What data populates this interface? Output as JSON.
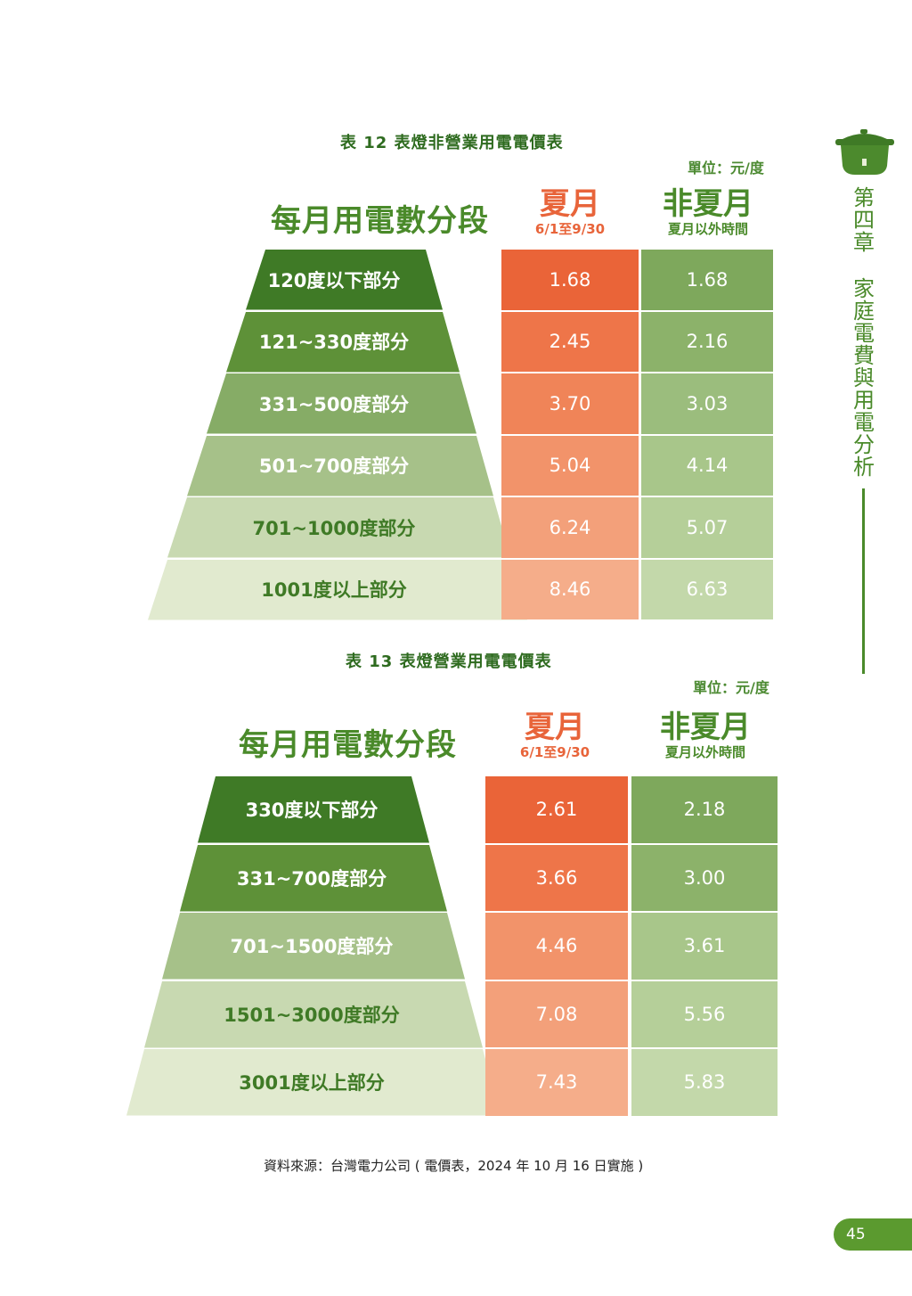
{
  "table12": {
    "title": "表 12 表燈非營業用電電價表",
    "unit": "單位：元/度",
    "tier_header": "每月用電數分段",
    "summer_label": "夏月",
    "summer_range": "6/1至9/30",
    "nonsummer_label": "非夏月",
    "nonsummer_range": "夏月以外時間",
    "rows": [
      {
        "tier": "120度以下部分",
        "summer": "1.68",
        "nonsummer": "1.68"
      },
      {
        "tier": "121~330度部分",
        "summer": "2.45",
        "nonsummer": "2.16"
      },
      {
        "tier": "331~500度部分",
        "summer": "3.70",
        "nonsummer": "3.03"
      },
      {
        "tier": "501~700度部分",
        "summer": "5.04",
        "nonsummer": "4.14"
      },
      {
        "tier": "701~1000度部分",
        "summer": "6.24",
        "nonsummer": "5.07"
      },
      {
        "tier": "1001度以上部分",
        "summer": "8.46",
        "nonsummer": "6.63"
      }
    ]
  },
  "table13": {
    "title": "表 13 表燈營業用電電價表",
    "unit": "單位：元/度",
    "tier_header": "每月用電數分段",
    "summer_label": "夏月",
    "summer_range": "6/1至9/30",
    "nonsummer_label": "非夏月",
    "nonsummer_range": "夏月以外時間",
    "rows": [
      {
        "tier": "330度以下部分",
        "summer": "2.61",
        "nonsummer": "2.18"
      },
      {
        "tier": "331~700度部分",
        "summer": "3.66",
        "nonsummer": "3.00"
      },
      {
        "tier": "701~1500度部分",
        "summer": "4.46",
        "nonsummer": "3.61"
      },
      {
        "tier": "1501~3000度部分",
        "summer": "7.08",
        "nonsummer": "5.56"
      },
      {
        "tier": "3001度以上部分",
        "summer": "7.43",
        "nonsummer": "5.83"
      }
    ]
  },
  "sidebar": {
    "chapter": "第四章",
    "chapter_title": "家庭電費與用電分析",
    "icon": "rice-cooker-icon"
  },
  "footer": {
    "source": "資料來源：台灣電力公司 ( 電價表，2024 年 10 月 16 日實施 )",
    "page_number": "45"
  },
  "colors": {
    "tier_greens": [
      "#3f7a26",
      "#5e9138",
      "#86ac66",
      "#a6c189",
      "#c8d9b1",
      "#e1eacf"
    ],
    "summer_oranges": [
      "#ea6438",
      "#ee7549",
      "#f08458",
      "#f2936a",
      "#f3a07a",
      "#f5ad8a"
    ],
    "nonsummer_greens": [
      "#7ea85c",
      "#8cb26a",
      "#9bbd7d",
      "#a8c68a",
      "#b5cf99",
      "#c3d8aa"
    ]
  }
}
